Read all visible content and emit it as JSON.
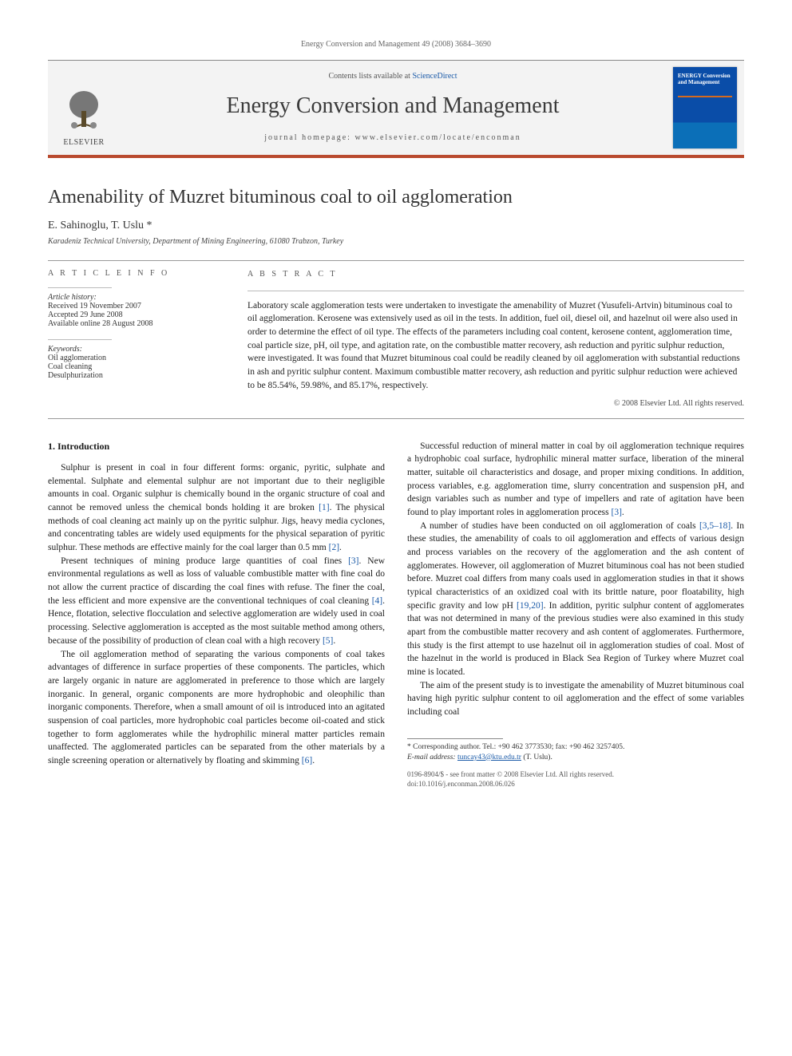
{
  "running_head": "Energy Conversion and Management 49 (2008) 3684–3690",
  "masthead": {
    "publisher": "ELSEVIER",
    "contents_prefix": "Contents lists available at ",
    "contents_link": "ScienceDirect",
    "journal": "Energy Conversion and Management",
    "homepage_prefix": "journal homepage: ",
    "homepage": "www.elsevier.com/locate/enconman",
    "cover_title": "ENERGY Conversion and Management"
  },
  "title": "Amenability of Muzret bituminous coal to oil agglomeration",
  "authors": "E. Sahinoglu, T. Uslu *",
  "affiliation": "Karadeniz Technical University, Department of Mining Engineering, 61080 Trabzon, Turkey",
  "article_info": {
    "heading": "A R T I C L E   I N F O",
    "history_label": "Article history:",
    "received": "Received 19 November 2007",
    "accepted": "Accepted 29 June 2008",
    "online": "Available online 28 August 2008",
    "keywords_label": "Keywords:",
    "kw1": "Oil agglomeration",
    "kw2": "Coal cleaning",
    "kw3": "Desulphurization"
  },
  "abstract": {
    "heading": "A B S T R A C T",
    "text": "Laboratory scale agglomeration tests were undertaken to investigate the amenability of Muzret (Yusufeli-Artvin) bituminous coal to oil agglomeration. Kerosene was extensively used as oil in the tests. In addition, fuel oil, diesel oil, and hazelnut oil were also used in order to determine the effect of oil type. The effects of the parameters including coal content, kerosene content, agglomeration time, coal particle size, pH, oil type, and agitation rate, on the combustible matter recovery, ash reduction and pyritic sulphur reduction, were investigated. It was found that Muzret bituminous coal could be readily cleaned by oil agglomeration with substantial reductions in ash and pyritic sulphur content. Maximum combustible matter recovery, ash reduction and pyritic sulphur reduction were achieved to be 85.54%, 59.98%, and 85.17%, respectively.",
    "copyright": "© 2008 Elsevier Ltd. All rights reserved."
  },
  "section1_heading": "1. Introduction",
  "para1": "Sulphur is present in coal in four different forms: organic, pyritic, sulphate and elemental. Sulphate and elemental sulphur are not important due to their negligible amounts in coal. Organic sulphur is chemically bound in the organic structure of coal and cannot be removed unless the chemical bonds holding it are broken [1]. The physical methods of coal cleaning act mainly up on the pyritic sulphur. Jigs, heavy media cyclones, and concentrating tables are widely used equipments for the physical separation of pyritic sulphur. These methods are effective mainly for the coal larger than 0.5 mm [2].",
  "para2": "Present techniques of mining produce large quantities of coal fines [3]. New environmental regulations as well as loss of valuable combustible matter with fine coal do not allow the current practice of discarding the coal fines with refuse. The finer the coal, the less efficient and more expensive are the conventional techniques of coal cleaning [4]. Hence, flotation, selective flocculation and selective agglomeration are widely used in coal processing. Selective agglomeration is accepted as the most suitable method among others, because of the possibility of production of clean coal with a high recovery [5].",
  "para3": "The oil agglomeration method of separating the various components of coal takes advantages of difference in surface properties of these components. The particles, which are largely organic in nature are agglomerated in preference to those which are largely inorganic. In general, organic components are more hydrophobic and oleophilic than inorganic components. Therefore, when a small amount of oil is introduced into an agitated suspension of coal particles, more hydrophobic coal particles become oil-coated and stick together to form agglomerates while the hydrophilic mineral matter particles remain unaffected. The agglomerated particles can be separated from the other materials by a single screening operation or alternatively by floating and skimming [6].",
  "para4": "Successful reduction of mineral matter in coal by oil agglomeration technique requires a hydrophobic coal surface, hydrophilic mineral matter surface, liberation of the mineral matter, suitable oil characteristics and dosage, and proper mixing conditions. In addition, process variables, e.g. agglomeration time, slurry concentration and suspension pH, and design variables such as number and type of impellers and rate of agitation have been found to play important roles in agglomeration process [3].",
  "para5": "A number of studies have been conducted on oil agglomeration of coals [3,5–18]. In these studies, the amenability of coals to oil agglomeration and effects of various design and process variables on the recovery of the agglomeration and the ash content of agglomerates. However, oil agglomeration of Muzret bituminous coal has not been studied before. Muzret coal differs from many coals used in agglomeration studies in that it shows typical characteristics of an oxidized coal with its brittle nature, poor floatability, high specific gravity and low pH [19,20]. In addition, pyritic sulphur content of agglomerates that was not determined in many of the previous studies were also examined in this study apart from the combustible matter recovery and ash content of agglomerates. Furthermore, this study is the first attempt to use hazelnut oil in agglomeration studies of coal. Most of the hazelnut in the world is produced in Black Sea Region of Turkey where Muzret coal mine is located.",
  "para6": "The aim of the present study is to investigate the amenability of Muzret bituminous coal having high pyritic sulphur content to oil agglomeration and the effect of some variables including coal",
  "footnote": {
    "corr": "* Corresponding author. Tel.: +90 462 3773530; fax: +90 462 3257405.",
    "email_label": "E-mail address: ",
    "email": "tuncay43@ktu.edu.tr",
    "email_suffix": " (T. Uslu)."
  },
  "footer": {
    "line1": "0196-8904/$ - see front matter © 2008 Elsevier Ltd. All rights reserved.",
    "line2": "doi:10.1016/j.enconman.2008.06.026"
  },
  "colors": {
    "rule": "#b94a2e",
    "link": "#1a5aa8",
    "cover_top": "#0a4da8"
  }
}
